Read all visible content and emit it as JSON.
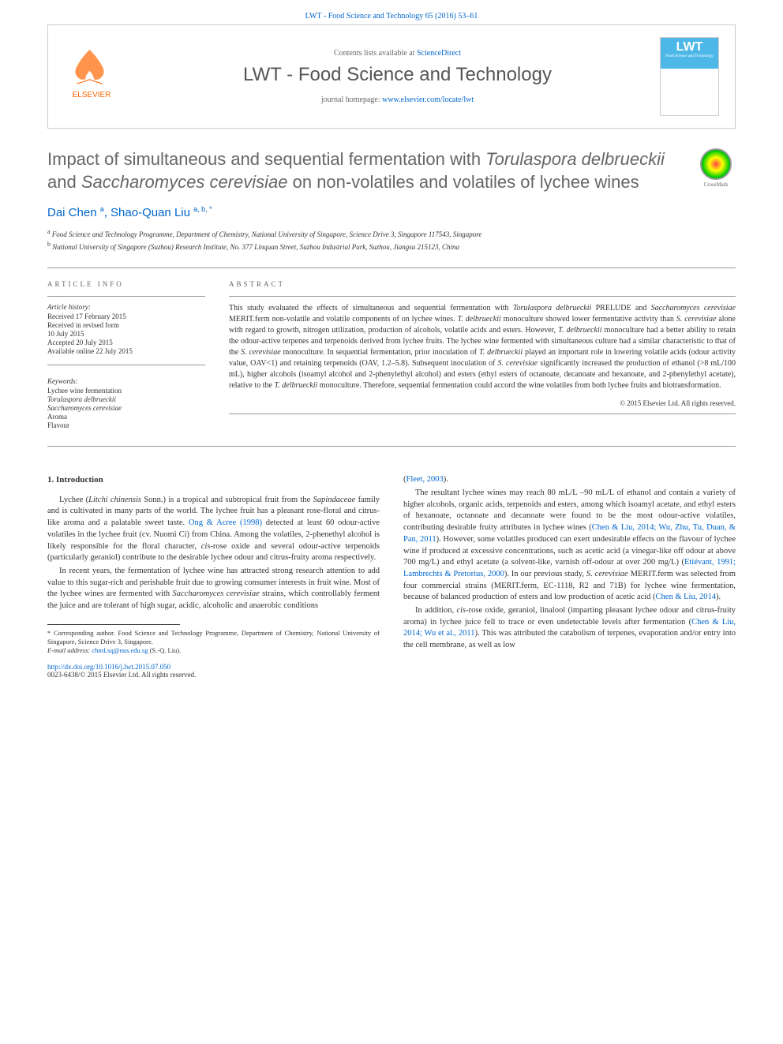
{
  "header": {
    "citation": "LWT - Food Science and Technology 65 (2016) 53–61",
    "contents_text": "Contents lists available at ",
    "contents_link": "ScienceDirect",
    "journal_title": "LWT - Food Science and Technology",
    "homepage_text": "journal homepage: ",
    "homepage_link": "www.elsevier.com/locate/lwt",
    "elsevier": "ELSEVIER",
    "cover_lwt": "LWT",
    "cover_sub": "Food Science and Technology"
  },
  "article": {
    "title_parts": [
      {
        "text": "Impact of simultaneous and sequential fermentation with ",
        "italic": false
      },
      {
        "text": "Torulaspora delbrueckii",
        "italic": true
      },
      {
        "text": " and ",
        "italic": false
      },
      {
        "text": "Saccharomyces cerevisiae",
        "italic": true
      },
      {
        "text": " on non-volatiles and volatiles of lychee wines",
        "italic": false
      }
    ],
    "crossmark": "CrossMark",
    "authors_html": "Dai Chen <sup>a</sup>, Shao-Quan Liu <sup>a, b, *</sup>",
    "affiliations": [
      {
        "sup": "a",
        "text": "Food Science and Technology Programme, Department of Chemistry, National University of Singapore, Science Drive 3, Singapore 117543, Singapore"
      },
      {
        "sup": "b",
        "text": "National University of Singapore (Suzhou) Research Institute, No. 377 Linquan Street, Suzhou Industrial Park, Suzhou, Jiangsu 215123, China"
      }
    ]
  },
  "info": {
    "heading": "ARTICLE INFO",
    "history_label": "Article history:",
    "history": [
      "Received 17 February 2015",
      "Received in revised form",
      "10 July 2015",
      "Accepted 20 July 2015",
      "Available online 22 July 2015"
    ],
    "keywords_label": "Keywords:",
    "keywords": [
      {
        "text": "Lychee wine fermentation",
        "italic": false
      },
      {
        "text": "Torulaspora delbrueckii",
        "italic": true
      },
      {
        "text": "Saccharomyces cerevisiae",
        "italic": true
      },
      {
        "text": "Aroma",
        "italic": false
      },
      {
        "text": "Flavour",
        "italic": false
      }
    ]
  },
  "abstract": {
    "heading": "ABSTRACT",
    "text": "This study evaluated the effects of simultaneous and sequential fermentation with <em>Torulaspora delbrueckii</em> PRELUDE and <em>Saccharomyces cerevisiae</em> MERIT.ferm non-volatile and volatile components of on lychee wines. <em>T. delbrueckii</em> monoculture showed lower fermentative activity than <em>S. cerevisiae</em> alone with regard to growth, nitrogen utilization, production of alcohols, volatile acids and esters. However, <em>T. delbrueckii</em> monoculture had a better ability to retain the odour-active terpenes and terpenoids derived from lychee fruits. The lychee wine fermented with simultaneous culture had a similar characteristic to that of the <em>S. cerevisiae</em> monoculture. In sequential fermentation, prior inoculation of <em>T. delbrueckii</em> played an important role in lowering volatile acids (odour activity value, OAV<1) and retaining terpenoids (OAV, 1.2–5.8). Subsequent inoculation of <em>S. cerevisiae</em> significantly increased the production of ethanol (>8 mL/100 mL), higher alcohols (isoamyl alcohol and 2-phenylethyl alcohol) and esters (ethyl esters of octanoate, decanoate and hexanoate, and 2-phenylethyl acetate), relative to the <em>T. delbrueckii</em> monoculture. Therefore, sequential fermentation could accord the wine volatiles from both lychee fruits and biotransformation.",
    "copyright": "© 2015 Elsevier Ltd. All rights reserved."
  },
  "body": {
    "section_heading": "1. Introduction",
    "p1": "Lychee (<em>Litchi chinensis</em> Sonn.) is a tropical and subtropical fruit from the <em>Sapindaceae</em> family and is cultivated in many parts of the world. The lychee fruit has a pleasant rose-floral and citrus-like aroma and a palatable sweet taste. <a>Ong & Acree (1998)</a> detected at least 60 odour-active volatiles in the lychee fruit (cv. Nuomi Ci) from China. Among the volatiles, 2-phenethyl alcohol is likely responsible for the floral character, <em>cis</em>-rose oxide and several odour-active terpenoids (particularly geraniol) contribute to the desirable lychee odour and citrus-fruity aroma respectively.",
    "p2": "In recent years, the fermentation of lychee wine has attracted strong research attention to add value to this sugar-rich and perishable fruit due to growing consumer interests in fruit wine. Most of the lychee wines are fermented with <em>Saccharomyces cerevisiae</em> strains, which controllably ferment the juice and are tolerant of high sugar, acidic, alcoholic and anaerobic conditions",
    "p3": "(<a>Fleet, 2003</a>).",
    "p4": "The resultant lychee wines may reach 80 mL/L –90 mL/L of ethanol and contain a variety of higher alcohols, organic acids, terpenoids and esters, among which isoamyl acetate, and ethyl esters of hexanoate, octanoate and decanoate were found to be the most odour-active volatiles, contributing desirable fruity attributes in lychee wines (<a>Chen & Liu, 2014; Wu, Zhu, Tu, Duan, & Pan, 2011</a>). However, some volatiles produced can exert undesirable effects on the flavour of lychee wine if produced at excessive concentrations, such as acetic acid (a vinegar-like off odour at above 700 mg/L) and ethyl acetate (a solvent-like, varnish off-odour at over 200 mg/L) (<a>Etiévant, 1991; Lambrechts & Pretorius, 2000</a>). In our previous study, <em>S. cerevisiae</em> MERIT.ferm was selected from four commercial strains (MERIT.ferm, EC-1118, R2 and 71B) for lychee wine fermentation, because of balanced production of esters and low production of acetic acid (<a>Chen & Liu, 2014</a>).",
    "p5": "In addition, <em>cis</em>-rose oxide, geraniol, linalool (imparting pleasant lychee odour and citrus-fruity aroma) in lychee juice fell to trace or even undetectable levels after fermentation (<a>Chen & Liu, 2014; Wu et al., 2011</a>). This was attributed the catabolism of terpenes, evaporation and/or entry into the cell membrane, as well as low"
  },
  "footnote": {
    "corr": "* Corresponding author. Food Science and Technology Programme, Department of Chemistry, National University of Singapore, Science Drive 3, Singapore.",
    "email_label": "E-mail address: ",
    "email": "chmLsq@nus.edu.sg",
    "email_suffix": " (S.-Q. Liu)."
  },
  "footer": {
    "doi": "http://dx.doi.org/10.1016/j.lwt.2015.07.050",
    "issn": "0023-6438/© 2015 Elsevier Ltd. All rights reserved."
  },
  "colors": {
    "link": "#0066cc",
    "heading_gray": "#666666",
    "elsevier_orange": "#ff6600",
    "lwt_blue": "#4db8e8"
  }
}
